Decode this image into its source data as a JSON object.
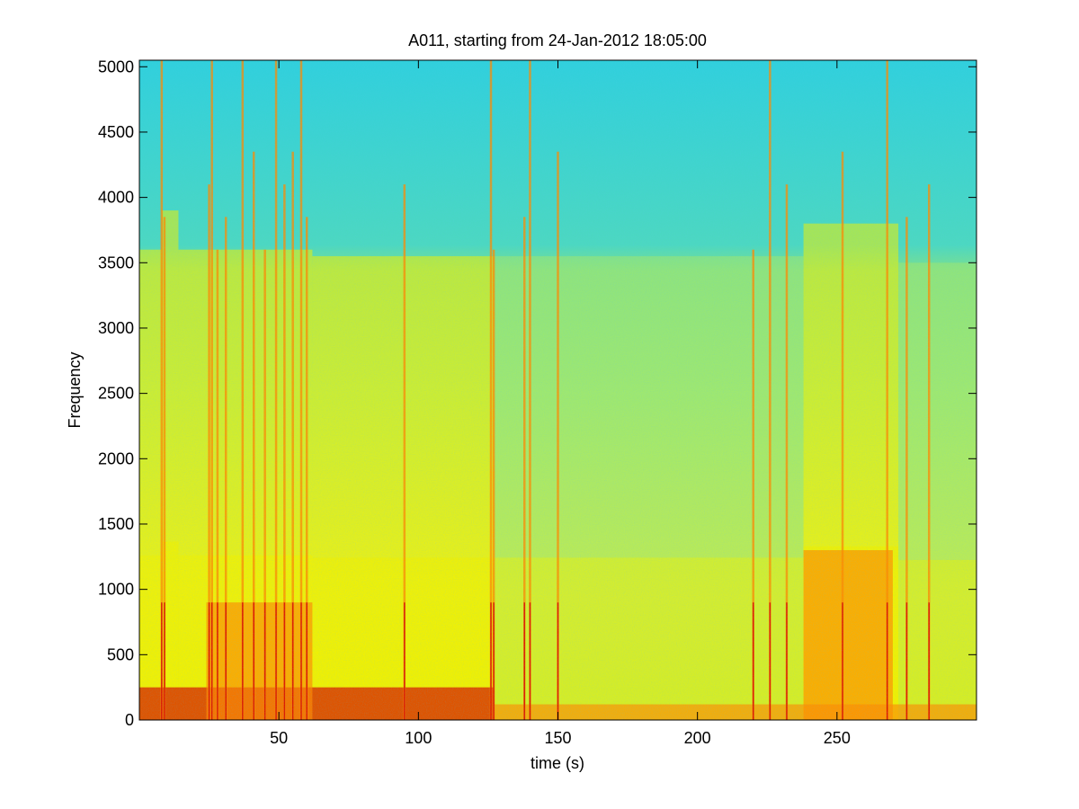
{
  "chart_data": {
    "type": "heatmap",
    "title": "A011, starting from 24-Jan-2012 18:05:00",
    "xlabel": "time (s)",
    "ylabel": "Frequency",
    "xlim": [
      0,
      300
    ],
    "ylim": [
      0,
      5050
    ],
    "x_ticks": [
      50,
      100,
      150,
      200,
      250
    ],
    "y_ticks": [
      0,
      500,
      1000,
      1500,
      2000,
      2500,
      3000,
      3500,
      4000,
      4500,
      5000
    ],
    "grid": false,
    "colormap": "jet",
    "colors": {
      "high": "#d40000",
      "mid_high": "#ff8a00",
      "mid": "#f0f000",
      "mid_low": "#9ee870",
      "low": "#38d8d0",
      "floor": "#2cc4e4"
    },
    "intensity_regions": [
      {
        "t_start": 0,
        "t_end": 8,
        "f_top": 3600,
        "level": 0.55
      },
      {
        "t_start": 8,
        "t_end": 14,
        "f_top": 3900,
        "level": 0.65
      },
      {
        "t_start": 14,
        "t_end": 24,
        "f_top": 3600,
        "level": 0.55
      },
      {
        "t_start": 24,
        "t_end": 62,
        "f_top": 3600,
        "level": 0.62
      },
      {
        "t_start": 62,
        "t_end": 127,
        "f_top": 3550,
        "level": 0.58
      },
      {
        "t_start": 127,
        "t_end": 238,
        "f_top": 3550,
        "level": 0.42
      },
      {
        "t_start": 238,
        "t_end": 272,
        "f_top": 3800,
        "level": 0.7
      },
      {
        "t_start": 272,
        "t_end": 300,
        "f_top": 3500,
        "level": 0.45
      }
    ],
    "strong_bands": [
      {
        "t_start": 0,
        "t_end": 127,
        "f_top": 250,
        "level": 0.92
      },
      {
        "t_start": 127,
        "t_end": 300,
        "f_top": 120,
        "level": 0.82
      },
      {
        "t_start": 24,
        "t_end": 62,
        "f_top": 900,
        "level": 0.85
      },
      {
        "t_start": 238,
        "t_end": 270,
        "f_top": 1300,
        "level": 0.78
      }
    ],
    "transients": [
      8,
      9,
      25,
      26,
      28,
      31,
      37,
      41,
      45,
      49,
      52,
      55,
      58,
      60,
      95,
      126,
      127,
      138,
      140,
      150,
      220,
      226,
      232,
      252,
      268,
      275,
      283
    ]
  }
}
